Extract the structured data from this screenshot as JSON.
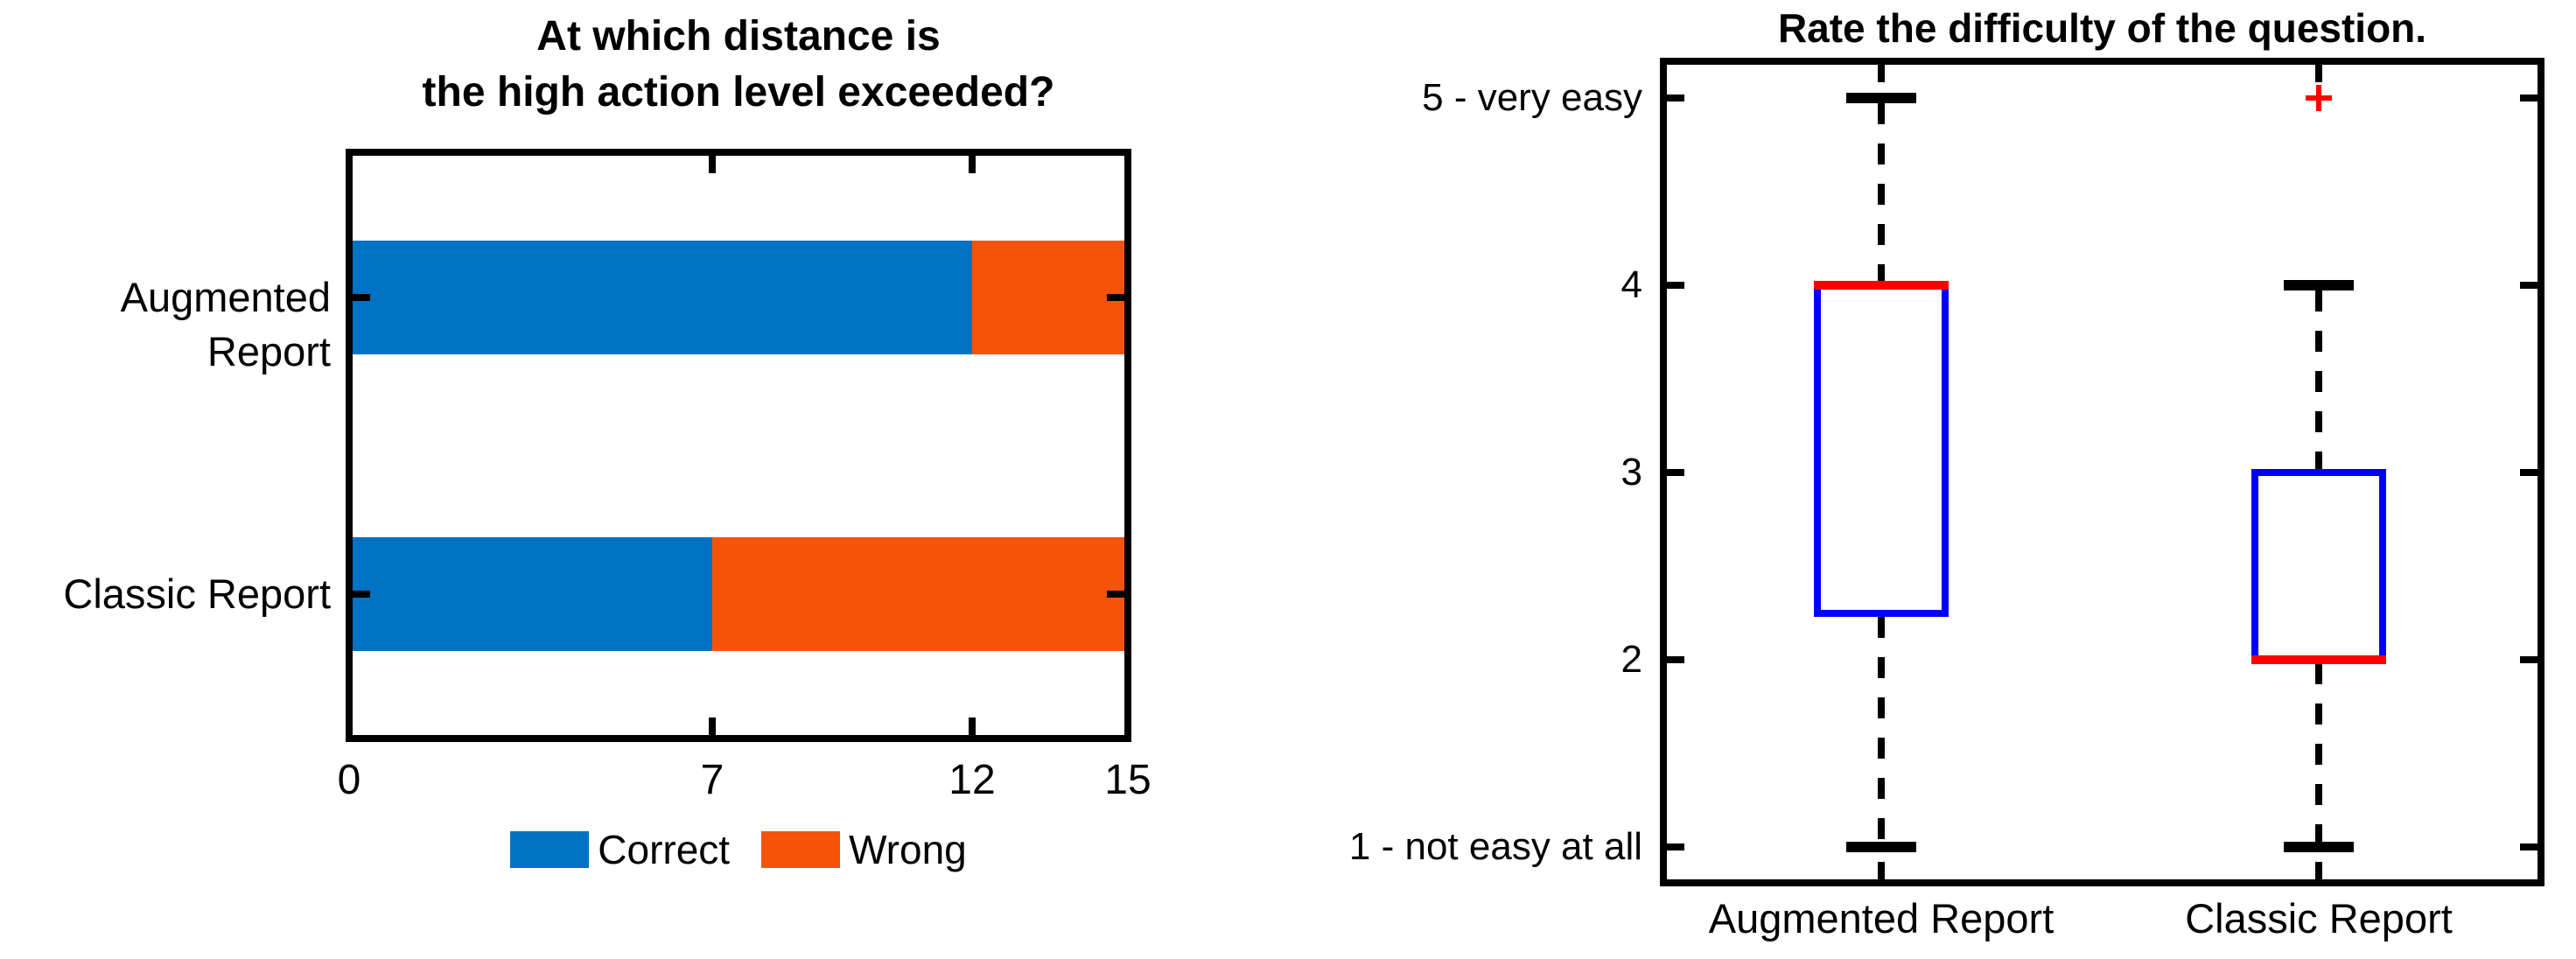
{
  "figure": {
    "background": "#ffffff"
  },
  "colors": {
    "correct_blue": "#0072c3",
    "wrong_orange": "#f55309",
    "box_blue": "#0000ff",
    "median_red": "#ff0000",
    "outlier_red": "#ff0000",
    "axis_black": "#000000"
  },
  "chart_data": [
    {
      "type": "bar",
      "orientation": "horizontal-stacked",
      "title_lines": [
        "At which distance is",
        "the high action level exceeded?"
      ],
      "categories": [
        "Augmented Report",
        "Classic Report"
      ],
      "series": [
        {
          "name": "Correct",
          "color_key": "correct_blue",
          "values": [
            12,
            7
          ]
        },
        {
          "name": "Wrong",
          "color_key": "wrong_orange",
          "values": [
            3,
            8
          ]
        }
      ],
      "xlim": [
        0,
        15
      ],
      "xticks": [
        0,
        7,
        12,
        15
      ],
      "grid": false,
      "legend_position": "below"
    },
    {
      "type": "boxplot",
      "title": "Rate the difficulty of the question.",
      "categories": [
        "Augmented Report",
        "Classic Report"
      ],
      "ylim": [
        0.8,
        5.2
      ],
      "yticks": [
        {
          "value": 1,
          "label": "1 - not easy at all"
        },
        {
          "value": 2,
          "label": "2"
        },
        {
          "value": 3,
          "label": "3"
        },
        {
          "value": 4,
          "label": "4"
        },
        {
          "value": 5,
          "label": "5 - very easy"
        }
      ],
      "boxes": [
        {
          "category": "Augmented Report",
          "whisker_low": 1,
          "q1": 2.25,
          "median": 4,
          "q3": 4,
          "whisker_high": 5,
          "outliers": []
        },
        {
          "category": "Classic Report",
          "whisker_low": 1,
          "q1": 2,
          "median": 2,
          "q3": 3,
          "whisker_high": 4,
          "outliers": [
            5
          ]
        }
      ],
      "grid": false
    }
  ]
}
